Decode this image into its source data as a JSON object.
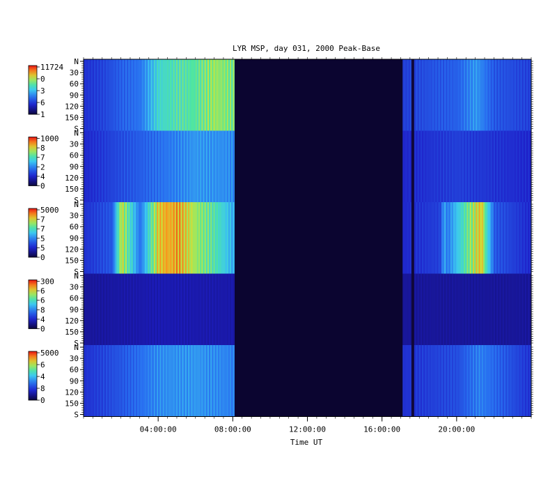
{
  "chart_data": {
    "type": "heatmap",
    "title": "LYR MSP, day 031, 2000 Peak-Base",
    "xlabel": "Time UT",
    "x_range_hours": [
      0,
      24
    ],
    "x_ticks": [
      {
        "hour": 4,
        "label": "04:00:00"
      },
      {
        "hour": 8,
        "label": "08:00:00"
      },
      {
        "hour": 12,
        "label": "12:00:00"
      },
      {
        "hour": 16,
        "label": "16:00:00"
      },
      {
        "hour": 20,
        "label": "20:00:00"
      }
    ],
    "y_ticks": [
      {
        "value": 0,
        "label": "N"
      },
      {
        "value": 30,
        "label": "30"
      },
      {
        "value": 60,
        "label": "60"
      },
      {
        "value": 90,
        "label": "90"
      },
      {
        "value": 120,
        "label": "120"
      },
      {
        "value": 150,
        "label": "150"
      },
      {
        "value": 180,
        "label": "S"
      }
    ],
    "y_range_deg": [
      0,
      180
    ],
    "data_segments_hours": [
      [
        0,
        8.1
      ],
      [
        17.1,
        24
      ]
    ],
    "gap_hours": [
      8.1,
      17.1
    ],
    "dark_stripe_hour": 17.65,
    "panels": [
      {
        "colorbar_labels": [
          "11724",
          "0",
          "3",
          "6",
          "1"
        ],
        "intensity_by_hour": [
          [
            0,
            0.22
          ],
          [
            1,
            0.26
          ],
          [
            2,
            0.32
          ],
          [
            3,
            0.36
          ],
          [
            4,
            0.55
          ],
          [
            5,
            0.6
          ],
          [
            6,
            0.62
          ],
          [
            7,
            0.7
          ],
          [
            8,
            0.65
          ]
        ],
        "intensity_after_gap": [
          [
            17.1,
            0.25
          ],
          [
            19,
            0.3
          ],
          [
            20,
            0.32
          ],
          [
            21,
            0.42
          ],
          [
            22,
            0.3
          ],
          [
            24,
            0.25
          ]
        ],
        "aurora_bands": [
          {
            "hour": 2.3,
            "strength": 0.25
          },
          {
            "hour": 3.9,
            "strength": 0.35
          },
          {
            "hour": 21.2,
            "strength": 0.3
          }
        ]
      },
      {
        "colorbar_labels": [
          "1000",
          "8",
          "7",
          "2",
          "4",
          "0"
        ],
        "intensity_by_hour": [
          [
            0,
            0.2
          ],
          [
            2,
            0.28
          ],
          [
            4,
            0.35
          ],
          [
            6,
            0.42
          ],
          [
            8,
            0.4
          ]
        ],
        "intensity_after_gap": [
          [
            17.1,
            0.2
          ],
          [
            20,
            0.25
          ],
          [
            24,
            0.2
          ]
        ],
        "aurora_bands": []
      },
      {
        "colorbar_labels": [
          "5000",
          "7",
          "7",
          "5",
          "5",
          "0"
        ],
        "intensity_by_hour": [
          [
            0,
            0.22
          ],
          [
            1.5,
            0.3
          ],
          [
            2,
            0.75
          ],
          [
            3,
            0.35
          ],
          [
            4,
            0.8
          ],
          [
            5,
            0.85
          ],
          [
            6,
            0.7
          ],
          [
            7,
            0.6
          ],
          [
            8,
            0.45
          ]
        ],
        "intensity_after_gap": [
          [
            17.1,
            0.2
          ],
          [
            19,
            0.25
          ],
          [
            21.2,
            0.8
          ],
          [
            22,
            0.3
          ],
          [
            24,
            0.2
          ]
        ],
        "aurora_bands": [
          {
            "hour": 2.1,
            "strength": 0.7
          },
          {
            "hour": 4.4,
            "strength": 0.85
          },
          {
            "hour": 5.6,
            "strength": 0.6
          },
          {
            "hour": 6.7,
            "strength": 0.6
          },
          {
            "hour": 19.3,
            "strength": 0.45
          },
          {
            "hour": 20.1,
            "strength": 0.35
          },
          {
            "hour": 21.3,
            "strength": 0.8
          }
        ]
      },
      {
        "colorbar_labels": [
          "300",
          "6",
          "6",
          "8",
          "4",
          "0"
        ],
        "intensity_by_hour": [
          [
            0,
            0.12
          ],
          [
            4,
            0.15
          ],
          [
            8,
            0.14
          ]
        ],
        "intensity_after_gap": [
          [
            17.1,
            0.12
          ],
          [
            24,
            0.12
          ]
        ],
        "aurora_bands": []
      },
      {
        "colorbar_labels": [
          "5000",
          "6",
          "4",
          "8",
          "0"
        ],
        "intensity_by_hour": [
          [
            0,
            0.22
          ],
          [
            2,
            0.3
          ],
          [
            4,
            0.4
          ],
          [
            6,
            0.42
          ],
          [
            8,
            0.38
          ]
        ],
        "intensity_after_gap": [
          [
            17.1,
            0.22
          ],
          [
            20,
            0.28
          ],
          [
            21.2,
            0.38
          ],
          [
            24,
            0.22
          ]
        ],
        "aurora_bands": [
          {
            "hour": 2.3,
            "strength": 0.2
          },
          {
            "hour": 21.2,
            "strength": 0.25
          }
        ]
      }
    ]
  }
}
